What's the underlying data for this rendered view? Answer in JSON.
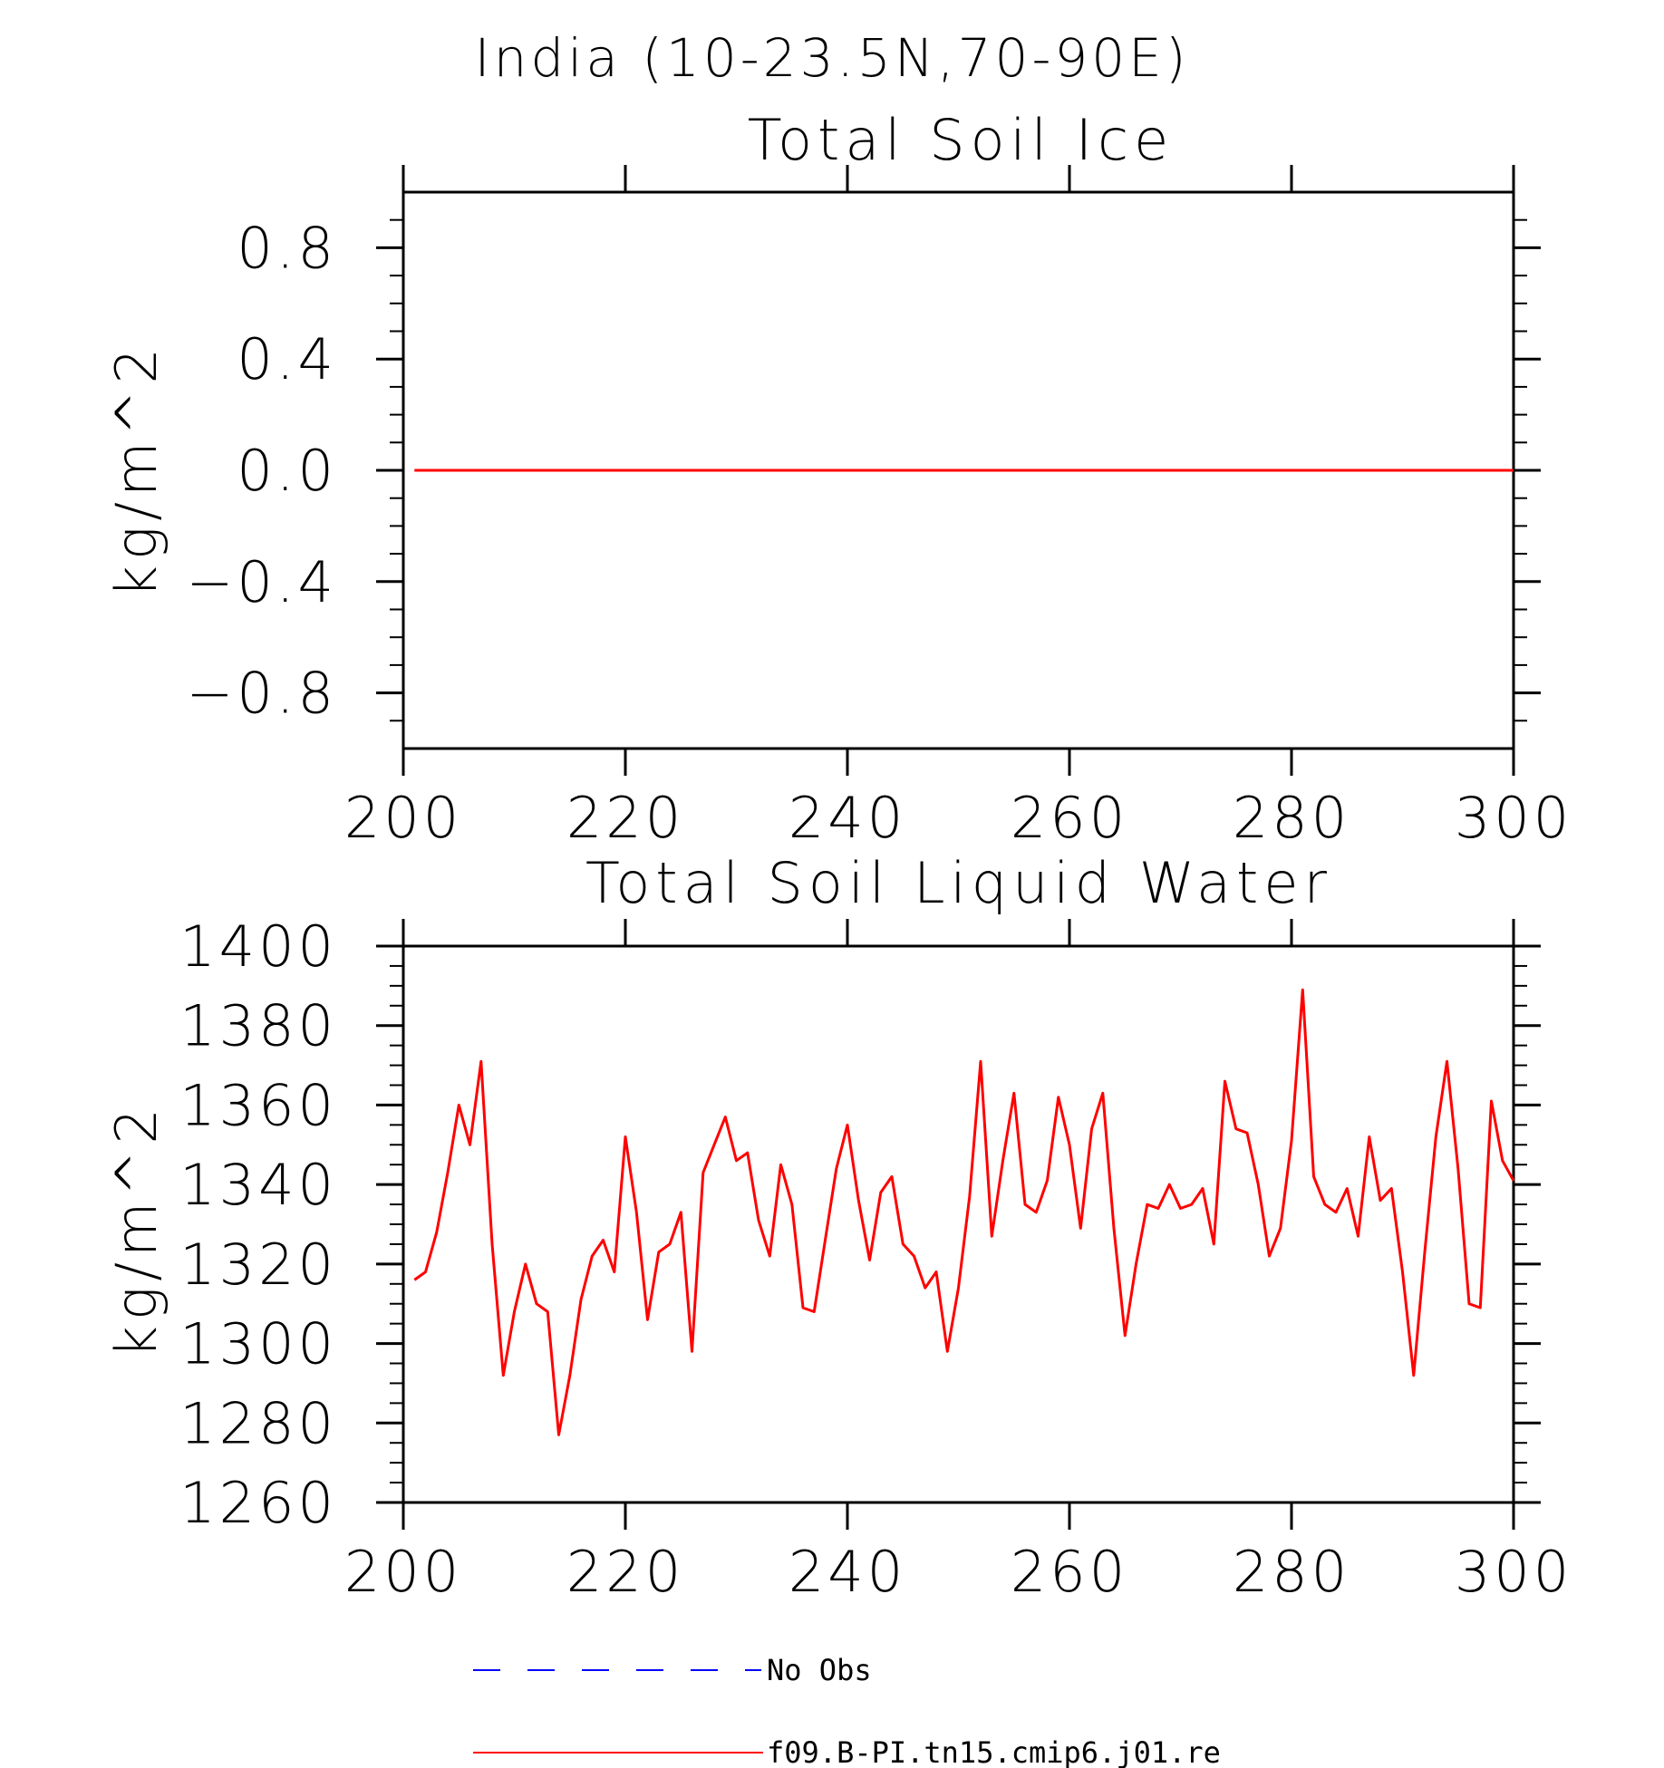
{
  "figure": {
    "title": "India (10-23.5N,70-90E)"
  },
  "chart_data": [
    {
      "type": "line",
      "title": "Total Soil Ice",
      "xlabel": "",
      "ylabel": "kg/m^2",
      "xlim": [
        200,
        300
      ],
      "ylim": [
        -1.0,
        1.0
      ],
      "xticks": [
        200,
        220,
        240,
        260,
        280,
        300
      ],
      "xtick_labels": [
        "200",
        "220",
        "240",
        "260",
        "280",
        "300"
      ],
      "yticks": [
        0.8,
        0.4,
        0.0,
        -0.4,
        -0.8
      ],
      "ytick_labels": [
        "0.8",
        "0.4",
        "0.0",
        "−0.4",
        "−0.8"
      ],
      "grid": false,
      "series": [
        {
          "name": "f09.B-PI.tn15.cmip6.j01.re",
          "color": "#ff0000",
          "x": [
            201,
            300
          ],
          "values": [
            0.0,
            0.0
          ]
        }
      ]
    },
    {
      "type": "line",
      "title": "Total Soil Liquid Water",
      "xlabel": "",
      "ylabel": "kg/m^2",
      "xlim": [
        200,
        300
      ],
      "ylim": [
        1260,
        1400
      ],
      "xticks": [
        200,
        220,
        240,
        260,
        280,
        300
      ],
      "xtick_labels": [
        "200",
        "220",
        "240",
        "260",
        "280",
        "300"
      ],
      "yticks": [
        1400,
        1380,
        1360,
        1340,
        1320,
        1300,
        1280,
        1260
      ],
      "ytick_labels": [
        "1400",
        "1380",
        "1360",
        "1340",
        "1320",
        "1300",
        "1280",
        "1260"
      ],
      "grid": false,
      "series": [
        {
          "name": "f09.B-PI.tn15.cmip6.j01.re",
          "color": "#ff0000",
          "x_start": 201,
          "x_step": 1,
          "values": [
            1316,
            1318,
            1328,
            1343,
            1360,
            1350,
            1371,
            1325,
            1292,
            1308,
            1320,
            1310,
            1308,
            1277,
            1292,
            1311,
            1322,
            1326,
            1318,
            1352,
            1333,
            1306,
            1323,
            1325,
            1333,
            1298,
            1343,
            1350,
            1357,
            1346,
            1348,
            1331,
            1322,
            1345,
            1335,
            1309,
            1308,
            1326,
            1344,
            1355,
            1336,
            1321,
            1338,
            1342,
            1325,
            1322,
            1314,
            1318,
            1298,
            1314,
            1337,
            1371,
            1327,
            1346,
            1363,
            1335,
            1333,
            1341,
            1362,
            1350,
            1329,
            1354,
            1363,
            1329,
            1302,
            1320,
            1335,
            1334,
            1340,
            1334,
            1335,
            1339,
            1325,
            1366,
            1354,
            1353,
            1340,
            1322,
            1329,
            1351,
            1389,
            1342,
            1335,
            1333,
            1339,
            1327,
            1352,
            1336,
            1339,
            1318,
            1292,
            1323,
            1352,
            1371,
            1344,
            1310,
            1309,
            1361,
            1346,
            1341
          ]
        }
      ]
    }
  ],
  "legend": {
    "placement": "bottom-center",
    "entries": [
      {
        "label": "No Obs",
        "color": "#0000ff",
        "style": "dashed"
      },
      {
        "label": "f09.B-PI.tn15.cmip6.j01.re",
        "color": "#ff0000",
        "style": "solid"
      }
    ]
  }
}
